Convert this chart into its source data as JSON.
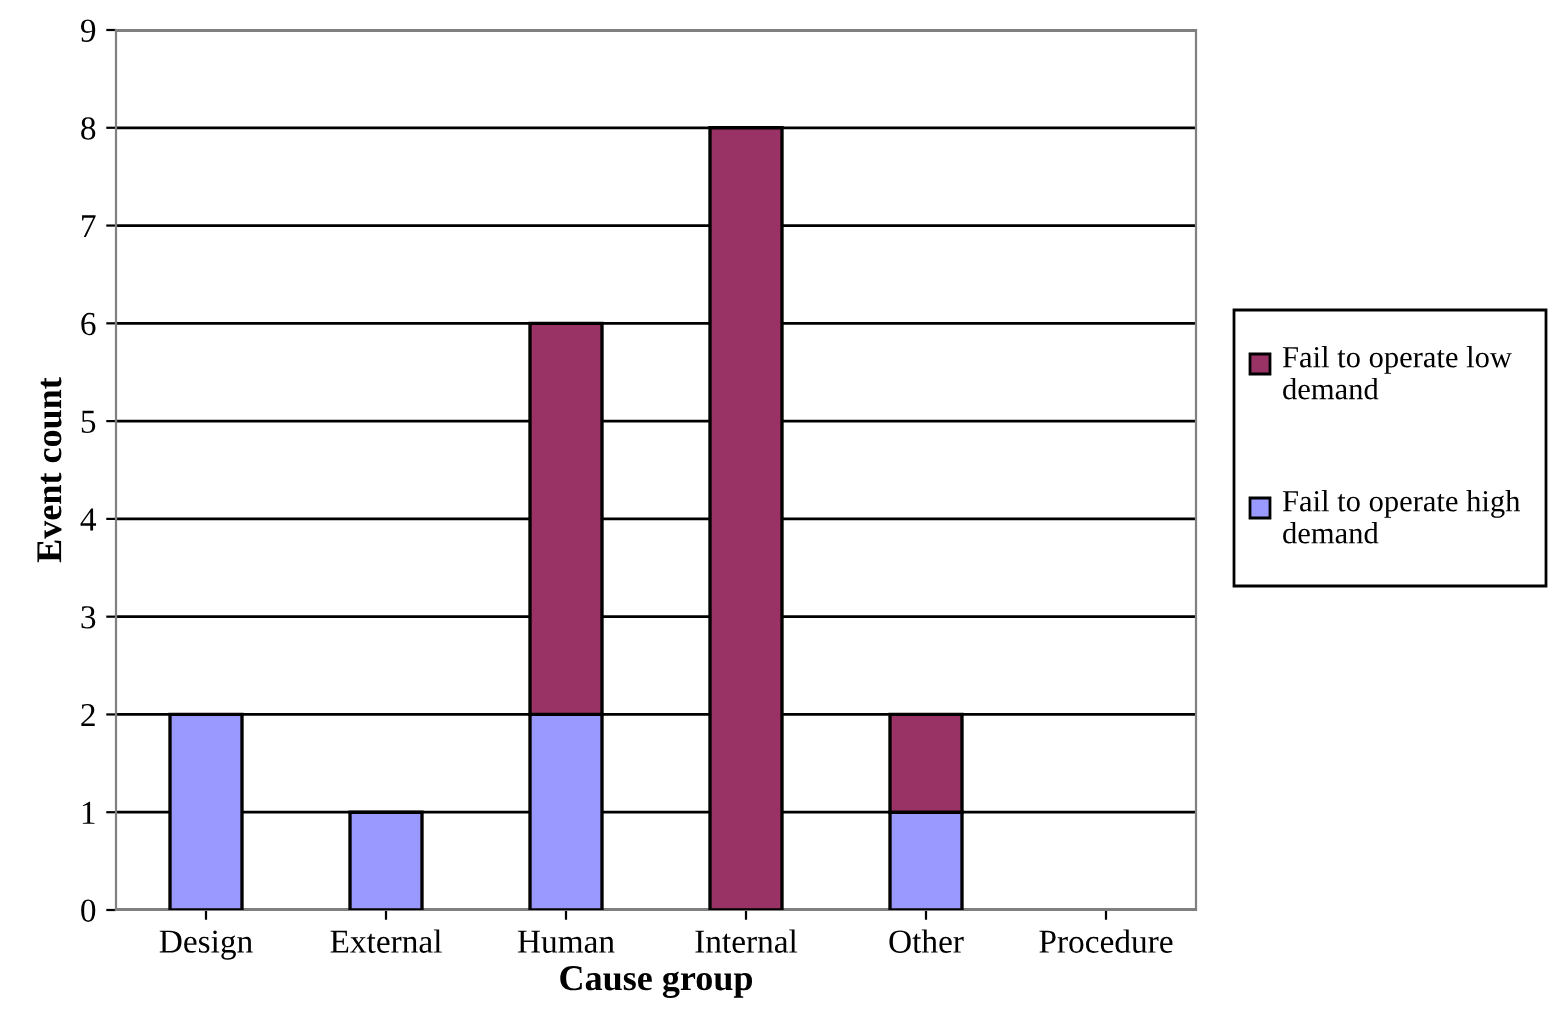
{
  "chart_data": {
    "type": "bar",
    "stacked": true,
    "xlabel": "Cause group",
    "ylabel": "Event count",
    "categories": [
      "Design",
      "External",
      "Human",
      "Internal",
      "Other",
      "Procedure"
    ],
    "series": [
      {
        "name": "Fail to operate high demand",
        "color": "#9999ff",
        "values": [
          2,
          1,
          2,
          null,
          1,
          null
        ]
      },
      {
        "name": "Fail to operate low demand",
        "color": "#993366",
        "values": [
          null,
          null,
          4,
          8,
          1,
          null
        ]
      }
    ],
    "ylim": [
      0,
      9
    ],
    "yticks": [
      0,
      1,
      2,
      3,
      4,
      5,
      6,
      7,
      8,
      9
    ],
    "grid": "y",
    "legend": "right"
  }
}
